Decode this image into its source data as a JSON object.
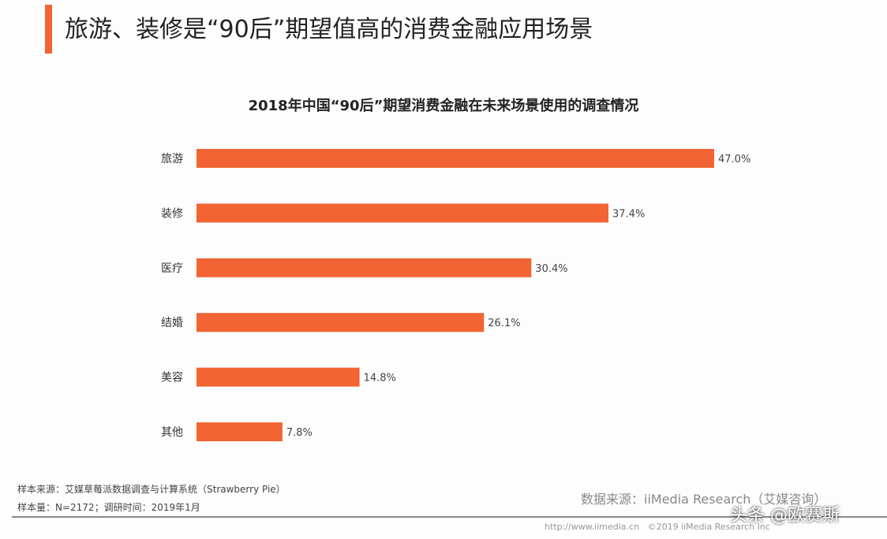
{
  "header": {
    "title": "旅游、装修是“90后”期望值高的消费金融应用场景"
  },
  "chart_data": {
    "type": "bar",
    "orientation": "horizontal",
    "title": "2018年中国“90后”期望消费金融在未来场景使用的调查情况",
    "categories": [
      "旅游",
      "装修",
      "医疗",
      "结婚",
      "美容",
      "其他"
    ],
    "values": [
      47.0,
      37.4,
      30.4,
      26.1,
      14.8,
      7.8
    ],
    "value_labels": [
      "47.0%",
      "37.4%",
      "30.4%",
      "26.1%",
      "14.8%",
      "7.8%"
    ],
    "unit": "%",
    "xlim": [
      0,
      47
    ],
    "grid": false,
    "bar_color": "#f26433"
  },
  "footer": {
    "sample_source": "样本来源：艾媒草莓派数据调查与计算系统（Strawberry Pie）",
    "sample_size": "样本量：N=2172；调研时间：2019年1月",
    "data_source": "数据来源：iiMedia Research（艾媒咨询）",
    "url": "http://www.iimedia.cn",
    "copyright": "©2019 iiMedia Research Inc",
    "watermark": "头条 @欧赛斯"
  }
}
